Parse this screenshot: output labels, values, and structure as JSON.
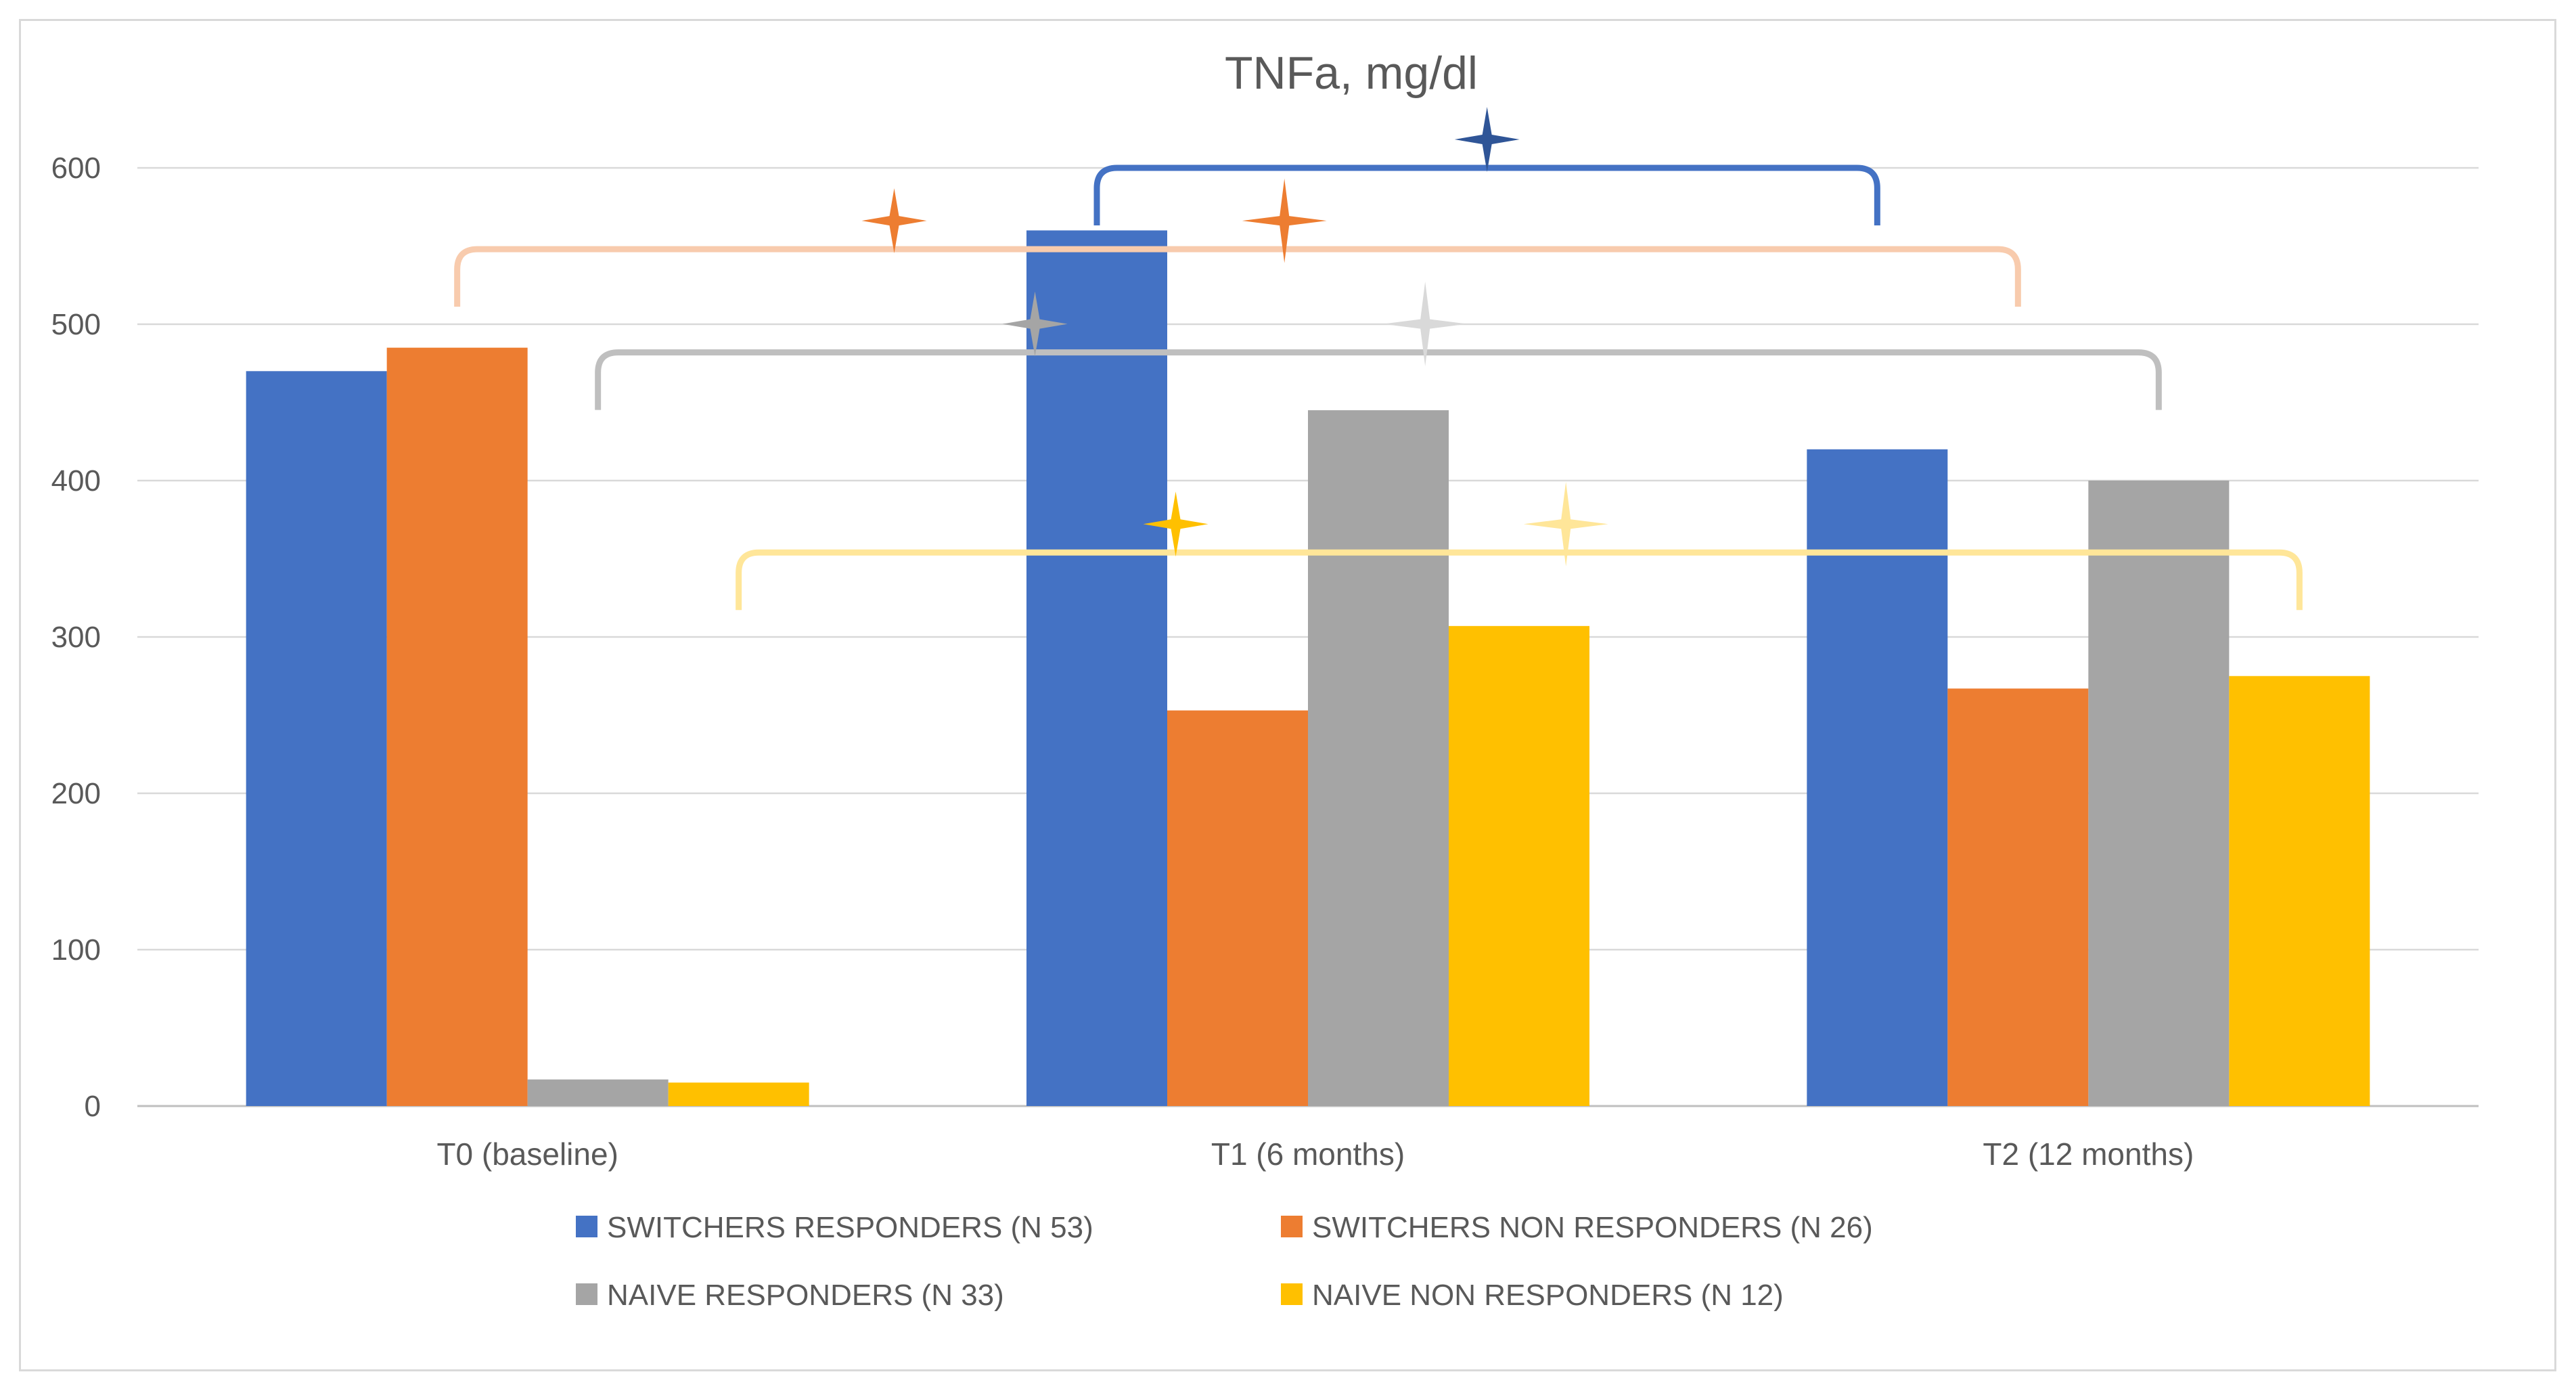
{
  "chart_data": {
    "type": "bar",
    "title": "TNFa, mg/dl",
    "xlabel": "",
    "ylabel": "",
    "categories": [
      "T0 (baseline)",
      "T1 (6 months)",
      "T2 (12 months)"
    ],
    "ylim": [
      0,
      600
    ],
    "yticks": [
      0,
      100,
      200,
      300,
      400,
      500,
      600
    ],
    "grid": true,
    "legend_position": "bottom",
    "series": [
      {
        "name": "SWITCHERS RESPONDERS (N 53)",
        "color": "#4472C4",
        "values": [
          470,
          560,
          420
        ]
      },
      {
        "name": "SWITCHERS NON RESPONDERS (N 26)",
        "color": "#ED7D31",
        "values": [
          485,
          253,
          267
        ]
      },
      {
        "name": "NAIVE RESPONDERS (N 33)",
        "color": "#A5A5A5",
        "values": [
          17,
          445,
          400
        ]
      },
      {
        "name": "NAIVE NON RESPONDERS (N 12)",
        "color": "#FFC000",
        "values": [
          15,
          307,
          275
        ]
      }
    ],
    "annotations": [
      {
        "type": "bracket",
        "from": [
          1,
          0
        ],
        "to": [
          2,
          0
        ],
        "level": 600,
        "color": "#4472C4",
        "star_color": "#2F5597"
      },
      {
        "type": "bracket",
        "from": [
          0,
          1
        ],
        "to": [
          2,
          1
        ],
        "level": 548,
        "color": "#F8CBAD",
        "star_color": "#ED7D31",
        "star2_color": "#ED7D31"
      },
      {
        "type": "bracket",
        "from": [
          0,
          2
        ],
        "to": [
          2,
          2
        ],
        "level": 482,
        "color": "#BFBFBF",
        "star_color": "#A5A5A5",
        "star2_color": "#D9D9D9"
      },
      {
        "type": "bracket",
        "from": [
          0,
          3
        ],
        "to": [
          2,
          3
        ],
        "level": 354,
        "color": "#FFE699",
        "star_color": "#FFC000",
        "star2_color": "#FFE699"
      }
    ]
  }
}
